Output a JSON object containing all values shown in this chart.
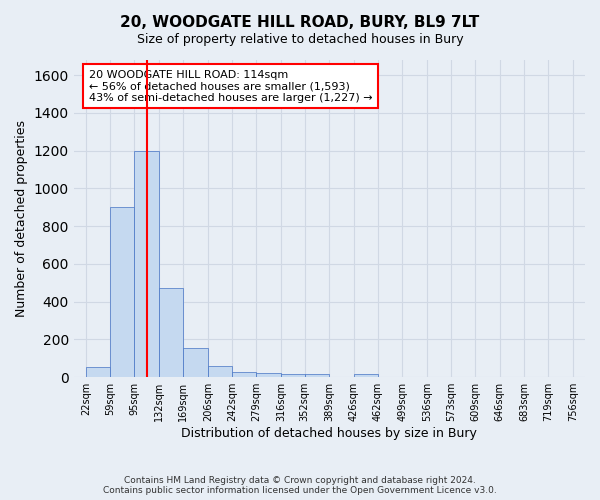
{
  "title": "20, WOODGATE HILL ROAD, BURY, BL9 7LT",
  "subtitle": "Size of property relative to detached houses in Bury",
  "xlabel": "Distribution of detached houses by size in Bury",
  "ylabel": "Number of detached properties",
  "footer_line1": "Contains HM Land Registry data © Crown copyright and database right 2024.",
  "footer_line2": "Contains public sector information licensed under the Open Government Licence v3.0.",
  "annotation_line1": "20 WOODGATE HILL ROAD: 114sqm",
  "annotation_line2": "← 56% of detached houses are smaller (1,593)",
  "annotation_line3": "43% of semi-detached houses are larger (1,227) →",
  "property_size_sqm": 114,
  "bar_color": "#c5d9f0",
  "bar_edge_color": "#4472c4",
  "grid_color": "#d0d8e4",
  "background_color": "#e8eef5",
  "annotation_box_color": "white",
  "annotation_box_edge": "red",
  "vline_color": "red",
  "bin_edges": [
    22,
    59,
    95,
    132,
    169,
    206,
    242,
    279,
    316,
    352,
    389,
    426,
    462,
    499,
    536,
    573,
    609,
    646,
    683,
    719,
    756
  ],
  "bin_labels": [
    "22sqm",
    "59sqm",
    "95sqm",
    "132sqm",
    "169sqm",
    "206sqm",
    "242sqm",
    "279sqm",
    "316sqm",
    "352sqm",
    "389sqm",
    "426sqm",
    "462sqm",
    "499sqm",
    "536sqm",
    "573sqm",
    "609sqm",
    "646sqm",
    "683sqm",
    "719sqm",
    "756sqm"
  ],
  "values": [
    55,
    900,
    1200,
    470,
    155,
    62,
    30,
    20,
    15,
    15,
    0,
    15,
    0,
    0,
    0,
    0,
    0,
    0,
    0,
    0
  ],
  "ylim": [
    0,
    1680
  ],
  "yticks": [
    0,
    200,
    400,
    600,
    800,
    1000,
    1200,
    1400,
    1600
  ]
}
